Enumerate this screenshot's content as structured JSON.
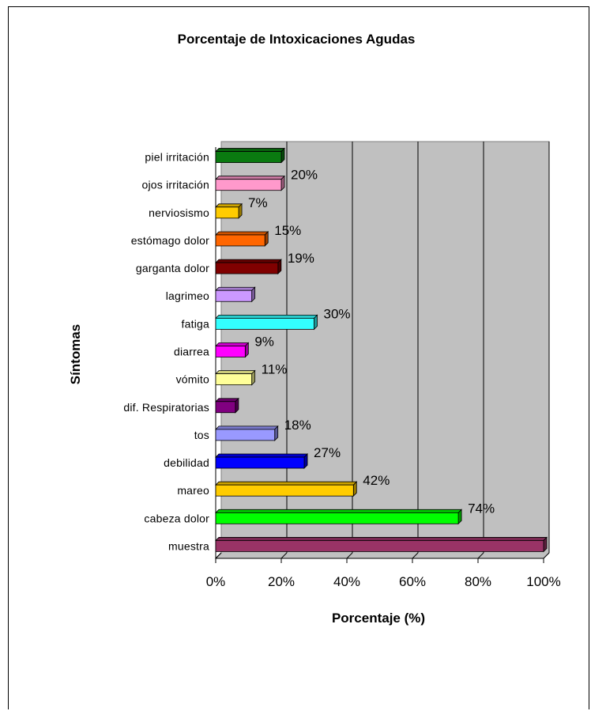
{
  "chart_data": {
    "type": "bar",
    "orientation": "horizontal",
    "title": "Porcentaje de Intoxicaciones Agudas",
    "xlabel": "Porcentaje (%)",
    "ylabel": "Síntomas",
    "xlim": [
      0,
      100
    ],
    "xticks": [
      "0%",
      "20%",
      "40%",
      "60%",
      "80%",
      "100%"
    ],
    "grid": true,
    "legend": "none",
    "plot_background": "#c0c0c0",
    "categories": [
      "piel irritación",
      "ojos irritación",
      "nerviosismo",
      "estómago dolor",
      "garganta dolor",
      "lagrimeo",
      "fatiga",
      "diarrea",
      "vómito",
      "dif. Respiratorias",
      "tos",
      "debilidad",
      "mareo",
      "cabeza dolor",
      "muestra"
    ],
    "values": [
      20,
      20,
      7,
      15,
      19,
      11,
      30,
      9,
      11,
      6,
      18,
      27,
      42,
      74,
      100
    ],
    "data_labels": [
      "",
      "20%",
      "7%",
      "15%",
      "19%",
      "",
      "30%",
      "9%",
      "11%",
      "",
      "18%",
      "27%",
      "42%",
      "74%",
      ""
    ],
    "colors": [
      "#0a7a10",
      "#ff99cc",
      "#ffcc00",
      "#ff6600",
      "#800000",
      "#cc99ff",
      "#33ffff",
      "#ff00ff",
      "#ffff99",
      "#800080",
      "#9999ff",
      "#0000ff",
      "#ffcc00",
      "#00ff00",
      "#993366"
    ]
  }
}
